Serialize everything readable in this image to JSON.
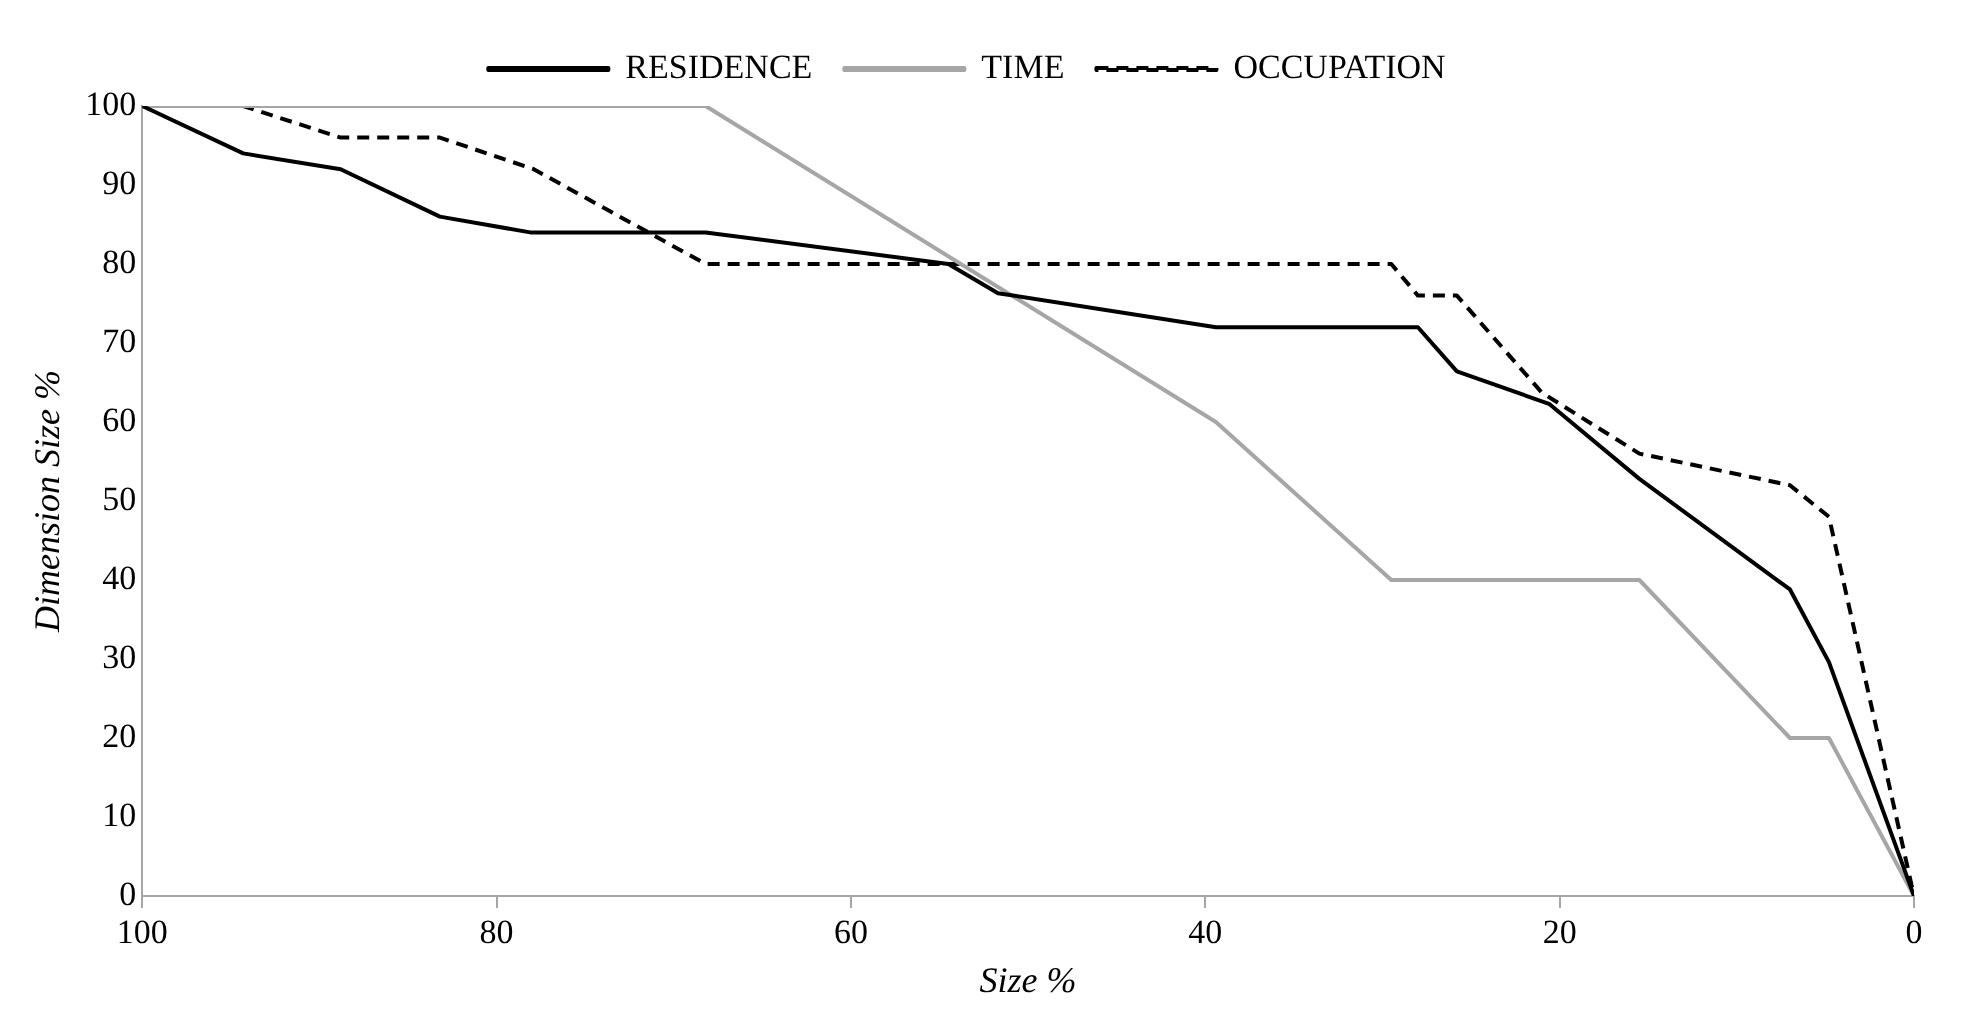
{
  "chart_data": {
    "type": "line",
    "xlabel": "Size %",
    "ylabel": "Dimension Size %",
    "xlim": [
      100,
      0
    ],
    "xticks": [
      100,
      80,
      60,
      40,
      20,
      0
    ],
    "ylim": [
      0,
      100
    ],
    "yticks": [
      0,
      10,
      20,
      30,
      40,
      50,
      60,
      70,
      80,
      90,
      100
    ],
    "legend": "top",
    "grid": false,
    "marker": "none",
    "series": [
      {
        "name": "RESIDENCE",
        "color": "#000000",
        "line_style": "solid",
        "x": [
          100,
          94.3,
          88.8,
          83.2,
          78.1,
          68.2,
          54.5,
          51.7,
          39.4,
          28,
          25.8,
          20.6,
          15.5,
          7,
          4.8,
          0
        ],
        "values": [
          100,
          94,
          92,
          86,
          84,
          84,
          80,
          76.3,
          72,
          72,
          66.4,
          62.3,
          52.8,
          38.8,
          29.6,
          0
        ]
      },
      {
        "name": "TIME",
        "color": "#a6a6a6",
        "line_style": "solid",
        "x": [
          100,
          68.2,
          39.4,
          29.5,
          15.5,
          7,
          4.8,
          0
        ],
        "values": [
          100,
          100,
          60,
          40,
          40,
          20,
          20,
          0
        ]
      },
      {
        "name": "OCCUPATION",
        "color": "#000000",
        "line_style": "dashed",
        "x": [
          100,
          94.3,
          88.8,
          83.2,
          77.9,
          68.2,
          29.5,
          28,
          25.8,
          21,
          15.5,
          7,
          4.8,
          0
        ],
        "values": [
          100,
          100,
          96,
          96,
          92,
          80,
          80,
          76,
          76,
          63.7,
          56,
          52,
          48,
          0
        ]
      }
    ]
  }
}
